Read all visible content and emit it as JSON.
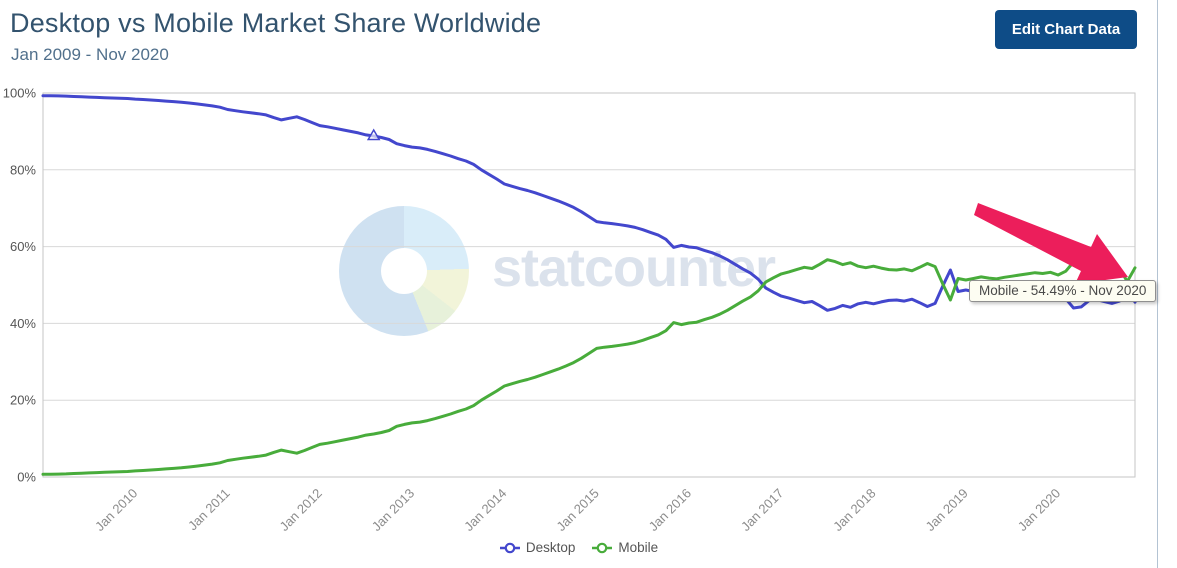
{
  "header": {
    "title": "Desktop vs Mobile Market Share Worldwide",
    "subtitle": "Jan 2009 - Nov 2020",
    "edit_button_label": "Edit Chart Data"
  },
  "watermark": {
    "text": "statcounter",
    "logo": "donut-pie-logo"
  },
  "tooltip": {
    "text": "Mobile - 54.49% - Nov 2020"
  },
  "legend": [
    {
      "label": "Desktop",
      "color": "#4347cd"
    },
    {
      "label": "Mobile",
      "color": "#48ac3b"
    }
  ],
  "colors": {
    "desktop_line": "#4347cd",
    "mobile_line": "#48ac3b",
    "annotation_arrow": "#ec1e5b",
    "button_bg": "#0e4c87",
    "title_text": "#33536e",
    "gridline": "#d8d8d8",
    "plot_border": "#c6c6c6"
  },
  "chart_data": {
    "type": "line",
    "title": "Desktop vs Mobile Market Share Worldwide",
    "subtitle": "Jan 2009 - Nov 2020",
    "x_start": "Jan 2009",
    "x_end": "Nov 2020",
    "frequency": "monthly",
    "ylim": [
      0,
      100
    ],
    "grid": "horizontal",
    "legend_position": "bottom",
    "y_tick_labels": [
      "100%",
      "80%",
      "60%",
      "40%",
      "20%",
      "0%"
    ],
    "y_tick_values": [
      100,
      80,
      60,
      40,
      20,
      0
    ],
    "x_tick_labels": [
      "Jan 2010",
      "Jan 2011",
      "Jan 2012",
      "Jan 2013",
      "Jan 2014",
      "Jan 2015",
      "Jan 2016",
      "Jan 2017",
      "Jan 2018",
      "Jan 2019",
      "Jan 2020"
    ],
    "x_tick_month_indices": [
      12,
      24,
      36,
      48,
      60,
      72,
      84,
      96,
      108,
      120,
      132
    ],
    "series": [
      {
        "name": "Desktop",
        "color": "#4347cd",
        "values": [
          99.3,
          99.27,
          99.24,
          99.2,
          99.1,
          99.0,
          98.92,
          98.85,
          98.78,
          98.7,
          98.65,
          98.58,
          98.4,
          98.3,
          98.18,
          98.05,
          97.9,
          97.75,
          97.6,
          97.4,
          97.15,
          96.9,
          96.65,
          96.3,
          95.7,
          95.4,
          95.1,
          94.85,
          94.6,
          94.3,
          93.6,
          93.0,
          93.4,
          93.8,
          93.1,
          92.3,
          91.5,
          91.2,
          90.8,
          90.4,
          90.0,
          89.6,
          89.1,
          88.8,
          88.4,
          87.9,
          86.8,
          86.3,
          85.9,
          85.7,
          85.3,
          84.8,
          84.2,
          83.6,
          82.9,
          82.3,
          81.4,
          80.0,
          78.8,
          77.6,
          76.3,
          75.7,
          75.1,
          74.6,
          74.0,
          73.3,
          72.6,
          71.9,
          71.1,
          70.2,
          69.1,
          67.8,
          66.5,
          66.2,
          66.0,
          65.7,
          65.4,
          65.0,
          64.4,
          63.7,
          63.0,
          61.9,
          59.8,
          60.3,
          59.9,
          59.7,
          59.0,
          58.4,
          57.6,
          56.6,
          55.4,
          54.2,
          53.1,
          51.5,
          49.2,
          48.1,
          47.1,
          46.6,
          46.0,
          45.4,
          45.7,
          44.6,
          43.4,
          43.9,
          44.7,
          44.2,
          45.1,
          45.5,
          45.1,
          45.6,
          46.0,
          46.1,
          45.8,
          46.3,
          45.4,
          44.4,
          45.2,
          49.7,
          53.9,
          48.3,
          48.7,
          48.3,
          47.9,
          48.2,
          48.4,
          48.0,
          47.7,
          47.4,
          47.1,
          46.8,
          47.0,
          46.7,
          47.4,
          46.4,
          44.0,
          44.3,
          45.9,
          46.2,
          45.7,
          45.2,
          45.8,
          49.1,
          45.51
        ]
      },
      {
        "name": "Mobile",
        "color": "#48ac3b",
        "values": [
          0.7,
          0.73,
          0.76,
          0.8,
          0.9,
          1.0,
          1.08,
          1.15,
          1.22,
          1.3,
          1.35,
          1.42,
          1.6,
          1.7,
          1.82,
          1.95,
          2.1,
          2.25,
          2.4,
          2.6,
          2.85,
          3.1,
          3.35,
          3.7,
          4.3,
          4.6,
          4.9,
          5.15,
          5.4,
          5.7,
          6.4,
          7.0,
          6.6,
          6.2,
          6.9,
          7.7,
          8.5,
          8.8,
          9.2,
          9.6,
          10.0,
          10.4,
          10.9,
          11.2,
          11.6,
          12.1,
          13.2,
          13.7,
          14.1,
          14.3,
          14.7,
          15.2,
          15.8,
          16.4,
          17.1,
          17.7,
          18.6,
          20.0,
          21.2,
          22.4,
          23.7,
          24.3,
          24.9,
          25.4,
          26.0,
          26.7,
          27.4,
          28.1,
          28.9,
          29.8,
          30.9,
          32.2,
          33.5,
          33.8,
          34.0,
          34.3,
          34.6,
          35.0,
          35.6,
          36.3,
          37.0,
          38.1,
          40.2,
          39.7,
          40.1,
          40.3,
          41.0,
          41.6,
          42.4,
          43.4,
          44.6,
          45.8,
          46.9,
          48.5,
          50.8,
          51.9,
          52.9,
          53.4,
          54.0,
          54.6,
          54.3,
          55.4,
          56.6,
          56.1,
          55.3,
          55.8,
          54.9,
          54.5,
          54.9,
          54.4,
          54.0,
          53.9,
          54.2,
          53.7,
          54.6,
          55.6,
          54.8,
          50.3,
          46.1,
          51.7,
          51.3,
          51.7,
          52.1,
          51.8,
          51.6,
          52.0,
          52.3,
          52.6,
          52.9,
          53.2,
          53.0,
          53.3,
          52.6,
          53.6,
          56.0,
          55.7,
          54.1,
          53.8,
          54.3,
          54.8,
          54.2,
          50.9,
          54.49
        ]
      }
    ],
    "annotations": {
      "triangle_marker": {
        "series_index": 0,
        "month_index": 43
      },
      "arrow": {
        "description": "pink arrow pointing at Mobile series end (Nov 2020)",
        "color": "#ec1e5b"
      },
      "tooltip": {
        "text": "Mobile - 54.49% - Nov 2020",
        "series": "Mobile",
        "value": 54.49,
        "month": "Nov 2020"
      }
    }
  }
}
